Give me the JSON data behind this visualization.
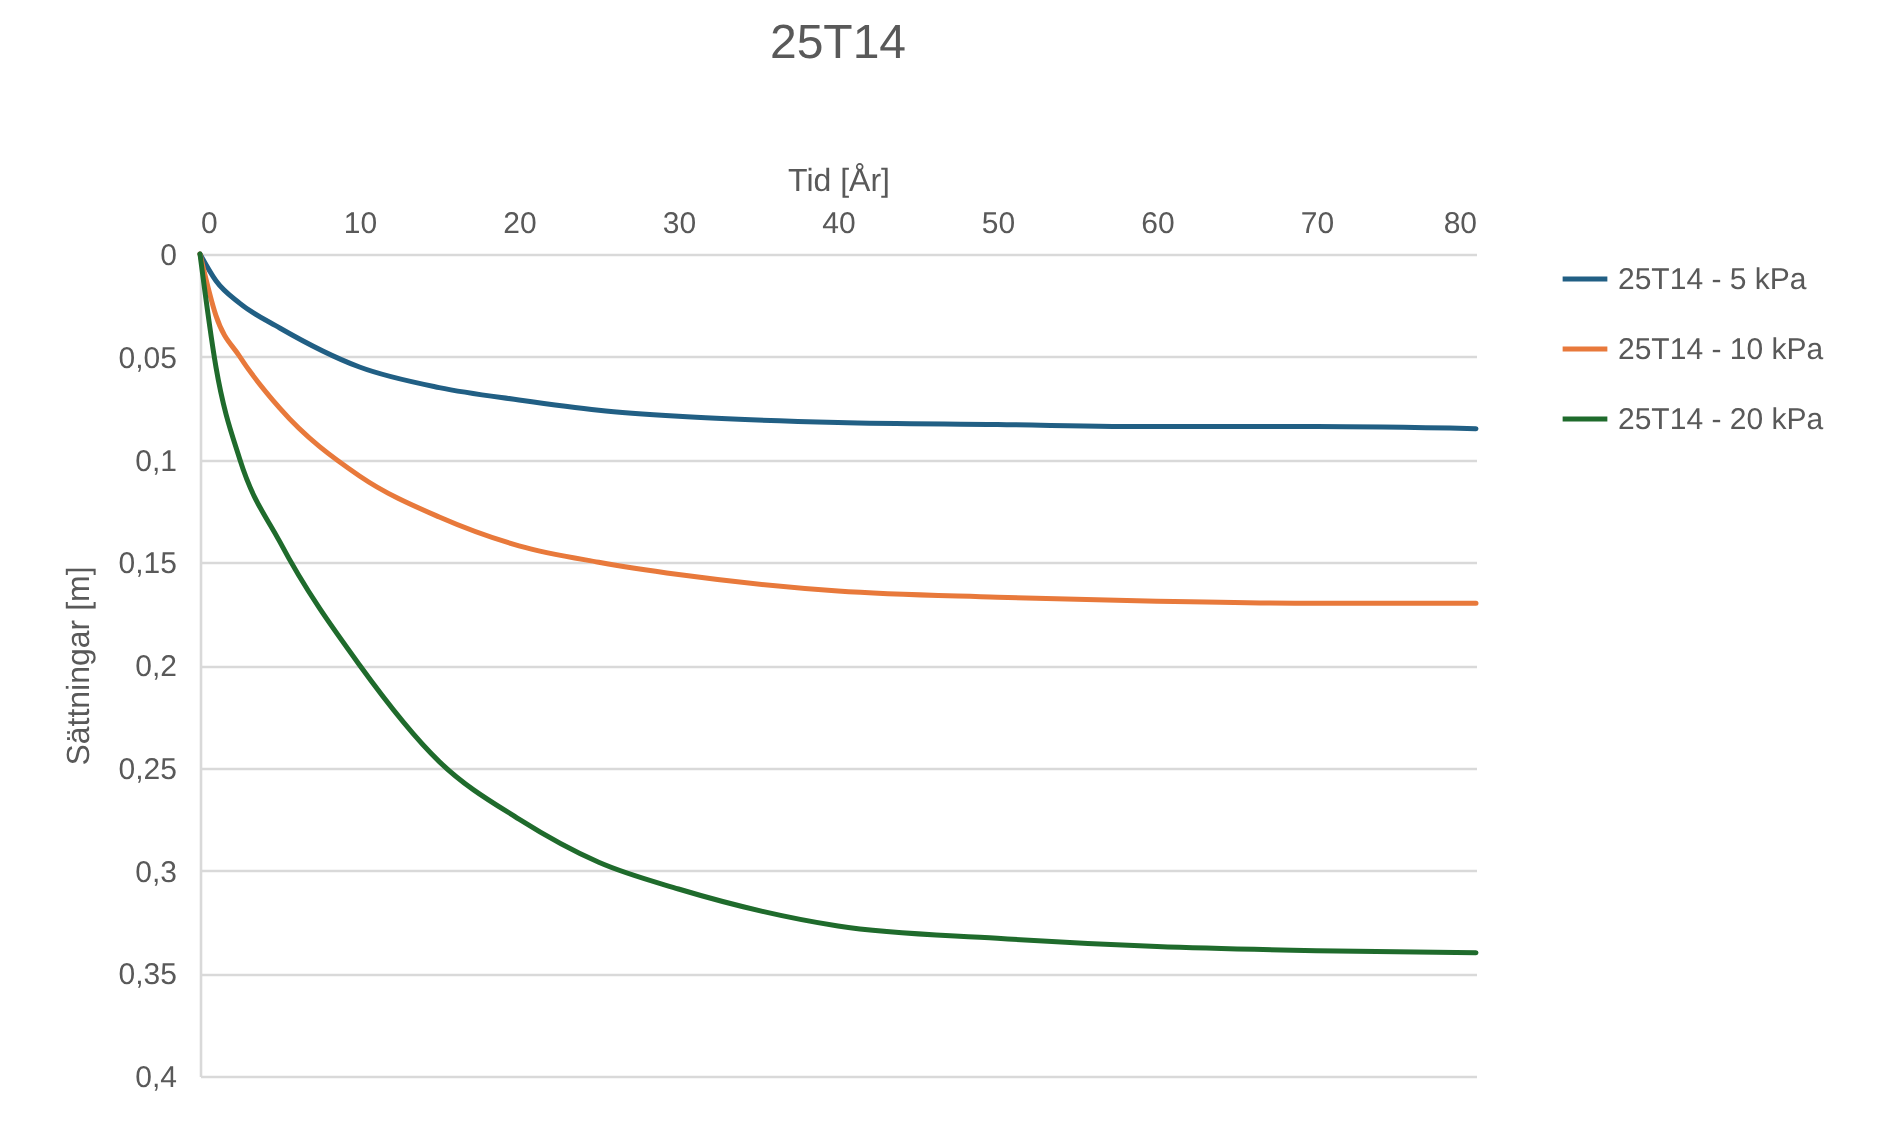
{
  "chart_data": {
    "type": "line",
    "title": "25T14",
    "xlabel": "Tid [År]",
    "ylabel": "Sättningar [m]",
    "xlim": [
      0,
      80
    ],
    "xticks": [
      0,
      10,
      20,
      30,
      40,
      50,
      60,
      70,
      80
    ],
    "ylim": [
      0.4,
      0
    ],
    "yticks": [
      {
        "value": 0,
        "label": "0"
      },
      {
        "value": 0.05,
        "label": "0,05"
      },
      {
        "value": 0.1,
        "label": "0,1"
      },
      {
        "value": 0.15,
        "label": "0,15"
      },
      {
        "value": 0.2,
        "label": "0,2"
      },
      {
        "value": 0.25,
        "label": "0,25"
      },
      {
        "value": 0.3,
        "label": "0,3"
      },
      {
        "value": 0.35,
        "label": "0,35"
      },
      {
        "value": 0.4,
        "label": "0,4"
      }
    ],
    "grid": "y",
    "legend": "right",
    "marker": "none",
    "line_style": "solid",
    "x": [
      0,
      1,
      2.5,
      5,
      10,
      15,
      20,
      25,
      30,
      40,
      50,
      60,
      70,
      80
    ],
    "series": [
      {
        "name": "25T14 - 5 kPa",
        "color": "#215f84",
        "values": [
          0,
          0.013,
          0.024,
          0.036,
          0.055,
          0.065,
          0.071,
          0.076,
          0.079,
          0.082,
          0.083,
          0.084,
          0.084,
          0.085
        ]
      },
      {
        "name": "25T14 - 10 kPa",
        "color": "#e8793b",
        "values": [
          0,
          0.03,
          0.05,
          0.075,
          0.108,
          0.128,
          0.142,
          0.15,
          0.156,
          0.164,
          0.167,
          0.169,
          0.17,
          0.17
        ]
      },
      {
        "name": "25T14 - 20 kPa",
        "color": "#1f6b2c",
        "values": [
          0,
          0.055,
          0.1,
          0.14,
          0.2,
          0.247,
          0.275,
          0.296,
          0.309,
          0.327,
          0.333,
          0.337,
          0.339,
          0.34
        ]
      }
    ]
  }
}
